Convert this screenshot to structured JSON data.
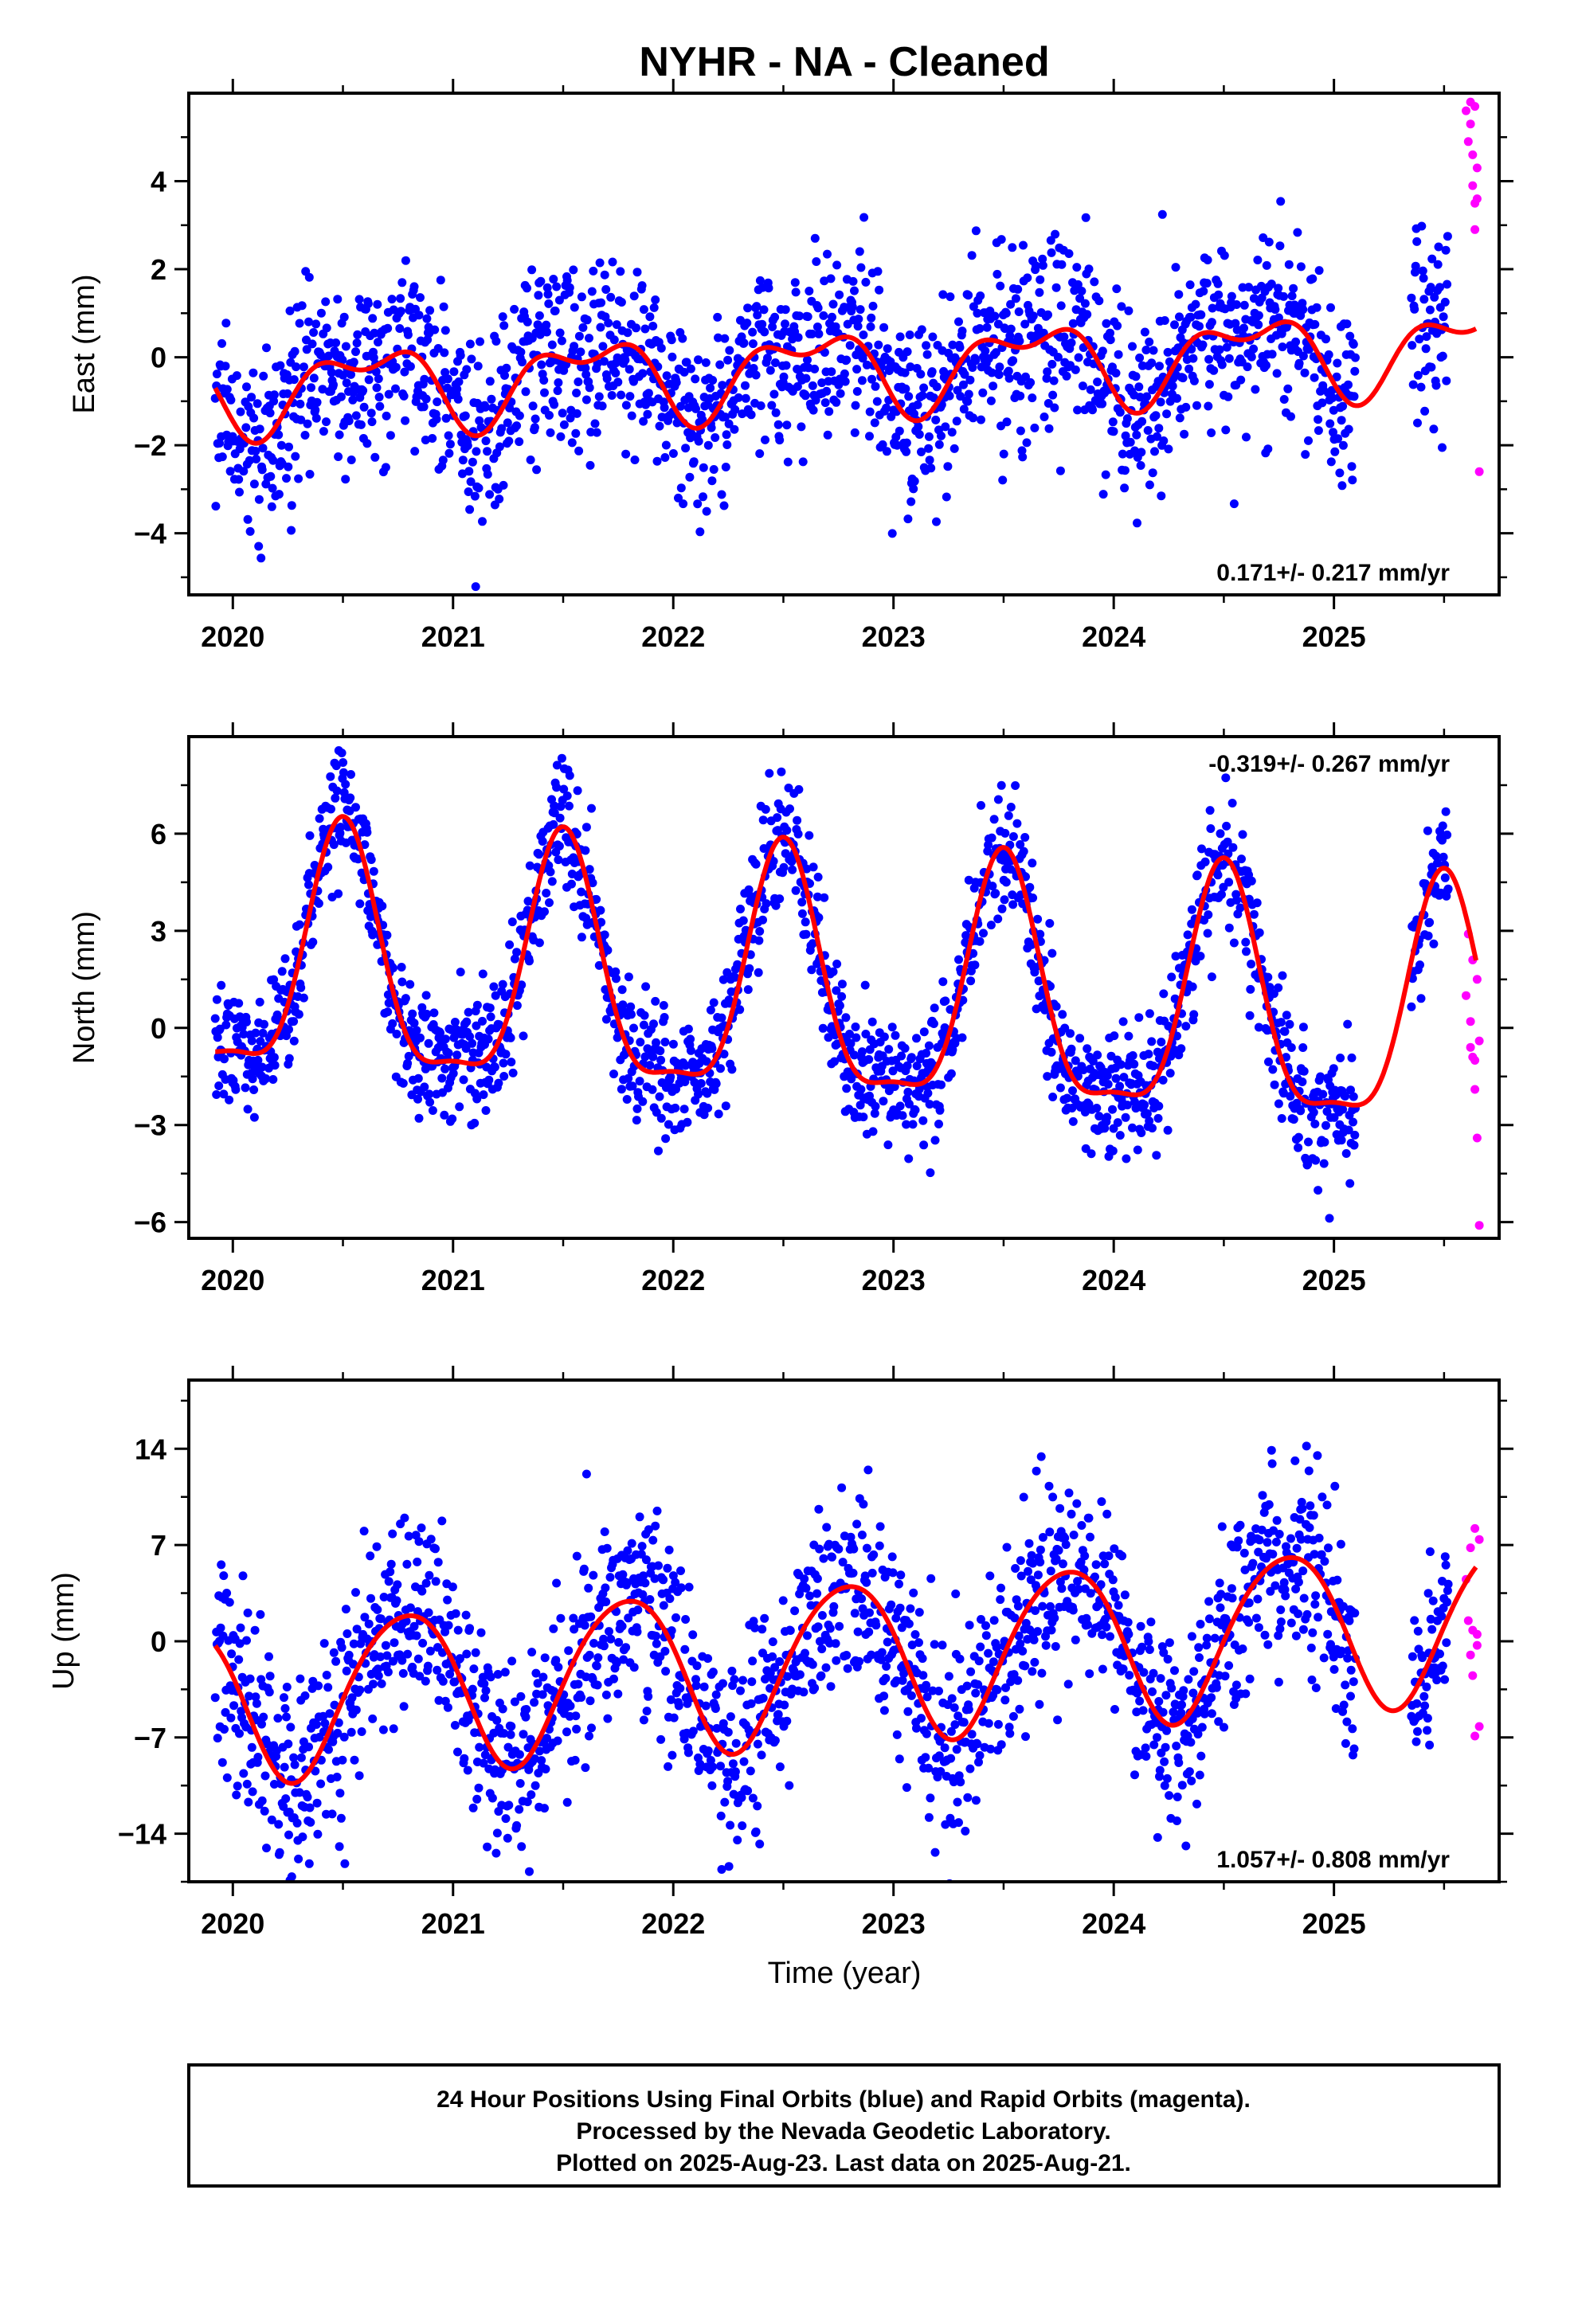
{
  "title": "NYHR  - NA - Cleaned",
  "footer": {
    "lines": [
      "24 Hour Positions Using Final Orbits (blue) and Rapid Orbits (magenta).",
      "Processed by the Nevada Geodetic Laboratory.",
      "Plotted on 2025-Aug-23. Last data on 2025-Aug-21."
    ]
  },
  "colors": {
    "final_orbits": "#0000ff",
    "rapid_orbits": "#ff00ff",
    "model_fit": "#ff0000",
    "axes": "#000000"
  },
  "chart_data": [
    {
      "type": "scatter",
      "component": "east",
      "ylabel": "East (mm)",
      "xlabel": "",
      "xlim": [
        2019.8,
        2025.75
      ],
      "ylim": [
        -5.4,
        6.0
      ],
      "xticks": [
        2020,
        2021,
        2022,
        2023,
        2024,
        2025
      ],
      "xtick_labels": [
        "2020",
        "2021",
        "2022",
        "2023",
        "2024",
        "2025"
      ],
      "yticks": [
        -4,
        -2,
        0,
        2,
        4
      ],
      "ytick_labels": [
        "−4",
        "−2",
        "0",
        "2",
        "4"
      ],
      "rate_label": "0.171+/- 0.217 mm/yr",
      "rate_position": "bottom-right",
      "grid": false,
      "model": {
        "name": "model fit",
        "offset": -0.25,
        "trend_mm_per_yr": 0.171,
        "epoch": 2022.8,
        "annual_amp": 0.8,
        "annual_peak": 2020.62,
        "semiannual_amp": 0.45,
        "semiannual_peak": 2020.35,
        "x_start": 2019.92,
        "x_end": 2025.65
      },
      "scatter_sd": 1.05,
      "final_orbits_end": 2025.52,
      "data_gap": [
        2025.1,
        2025.35
      ],
      "rapid_points": {
        "x": [
          2025.6,
          2025.61,
          2025.62,
          2025.62,
          2025.63,
          2025.63,
          2025.64,
          2025.64,
          2025.64,
          2025.65,
          2025.65,
          2025.66
        ],
        "y": [
          5.6,
          4.9,
          5.3,
          5.8,
          4.6,
          3.9,
          3.5,
          2.9,
          5.7,
          3.6,
          4.3,
          -2.6
        ]
      }
    },
    {
      "type": "scatter",
      "component": "north",
      "ylabel": "North (mm)",
      "xlabel": "",
      "xlim": [
        2019.8,
        2025.75
      ],
      "ylim": [
        -6.5,
        9.0
      ],
      "xticks": [
        2020,
        2021,
        2022,
        2023,
        2024,
        2025
      ],
      "xtick_labels": [
        "2020",
        "2021",
        "2022",
        "2023",
        "2024",
        "2025"
      ],
      "yticks": [
        -6,
        -3,
        0,
        3,
        6
      ],
      "ytick_labels": [
        "−6",
        "−3",
        "0",
        "3",
        "6"
      ],
      "rate_label": "-0.319+/- 0.267 mm/yr",
      "rate_position": "top-right",
      "grid": false,
      "model": {
        "name": "model fit",
        "offset": 1.0,
        "trend_mm_per_yr": -0.319,
        "epoch": 2022.8,
        "annual_amp": 3.7,
        "annual_peak": 2020.5,
        "semiannual_amp": 1.1,
        "semiannual_peak": 2020.5,
        "x_start": 2019.92,
        "x_end": 2025.65
      },
      "scatter_sd": 1.0,
      "final_orbits_end": 2025.52,
      "data_gap": [
        2025.1,
        2025.35
      ],
      "rapid_points": {
        "x": [
          2025.6,
          2025.61,
          2025.62,
          2025.62,
          2025.63,
          2025.63,
          2025.64,
          2025.64,
          2025.65,
          2025.65,
          2025.66,
          2025.66
        ],
        "y": [
          1.0,
          2.9,
          -0.6,
          0.2,
          2.1,
          -0.9,
          -1.0,
          -1.9,
          1.5,
          -3.4,
          -6.1,
          -0.4
        ]
      }
    },
    {
      "type": "scatter",
      "component": "up",
      "ylabel": "Up (mm)",
      "xlabel": "Time (year)",
      "xlim": [
        2019.8,
        2025.75
      ],
      "ylim": [
        -17.5,
        19.0
      ],
      "xticks": [
        2020,
        2021,
        2022,
        2023,
        2024,
        2025
      ],
      "xtick_labels": [
        "2020",
        "2021",
        "2022",
        "2023",
        "2024",
        "2025"
      ],
      "yticks": [
        -14,
        -7,
        0,
        7,
        14
      ],
      "ytick_labels": [
        "−14",
        "−7",
        "0",
        "7",
        "14"
      ],
      "rate_label": "1.057+/- 0.808 mm/yr",
      "rate_position": "bottom-right",
      "grid": false,
      "model": {
        "name": "model fit",
        "offset": -1.3,
        "trend_mm_per_yr": 1.057,
        "epoch": 2022.8,
        "annual_amp": 5.8,
        "annual_peak": 2020.78,
        "semiannual_amp": 0.6,
        "semiannual_peak": 2020.5,
        "x_start": 2019.92,
        "x_end": 2025.65
      },
      "scatter_sd": 3.6,
      "final_orbits_end": 2025.52,
      "data_gap": [
        2025.1,
        2025.35
      ],
      "rapid_points": {
        "x": [
          2025.6,
          2025.61,
          2025.62,
          2025.62,
          2025.63,
          2025.63,
          2025.64,
          2025.64,
          2025.65,
          2025.65,
          2025.66,
          2025.66
        ],
        "y": [
          4.5,
          1.5,
          -1.0,
          6.8,
          0.8,
          -2.5,
          -6.9,
          8.2,
          -0.3,
          0.5,
          -6.2,
          7.4
        ]
      }
    }
  ]
}
